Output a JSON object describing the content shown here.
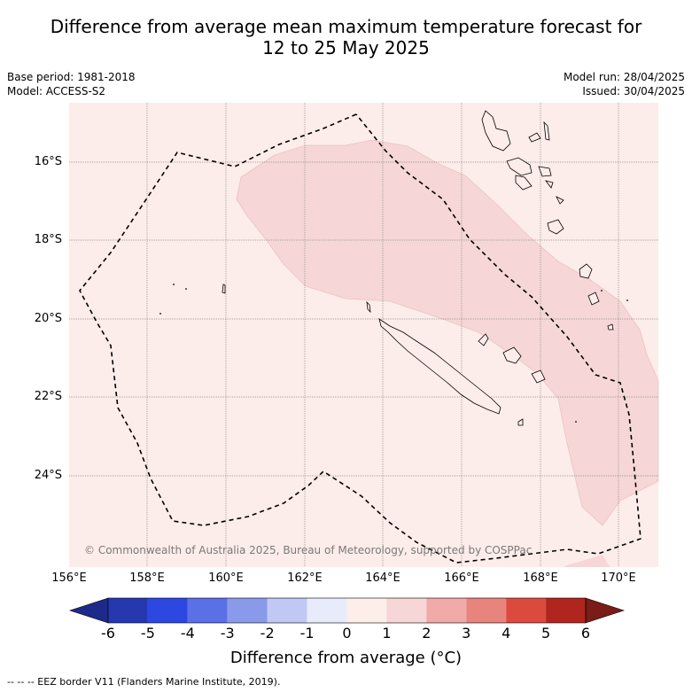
{
  "title_line1": "Difference from average mean maximum temperature forecast for",
  "title_line2": "12 to 25 May 2025",
  "meta_left": {
    "base_period": "Base period: 1981-2018",
    "model": "Model: ACCESS-S2"
  },
  "meta_right": {
    "model_run": "Model run: 28/04/2025",
    "issued": "Issued: 30/04/2025"
  },
  "lat_labels": [
    "16°S",
    "18°S",
    "20°S",
    "22°S",
    "24°S"
  ],
  "lon_labels": [
    "156°E",
    "158°E",
    "160°E",
    "162°E",
    "164°E",
    "166°E",
    "168°E",
    "170°E"
  ],
  "copyright": "© Commonwealth of Australia 2025, Bureau of Meteorology, supported by COSPPac",
  "colorbar": {
    "ticks": [
      "-6",
      "-5",
      "-4",
      "-3",
      "-2",
      "-1",
      "0",
      "1",
      "2",
      "3",
      "4",
      "5",
      "6"
    ],
    "colors": [
      "#1e2a8a",
      "#2638b0",
      "#2c48e0",
      "#5a70e6",
      "#8a9aea",
      "#c0c8f4",
      "#e8ecfa",
      "#fdeeea",
      "#f6d6d6",
      "#f0aaa8",
      "#e8847e",
      "#dc4a3e",
      "#b0261e",
      "#7a1c18"
    ],
    "title": "Difference from average (°C)"
  },
  "footer": "--  --  -- EEZ border V11 (Flanders Marine Institute, 2019).",
  "colors": {
    "map_bg": "#fcecea",
    "anomaly_1_2": "#f6d6d6",
    "grid": "#888888"
  }
}
